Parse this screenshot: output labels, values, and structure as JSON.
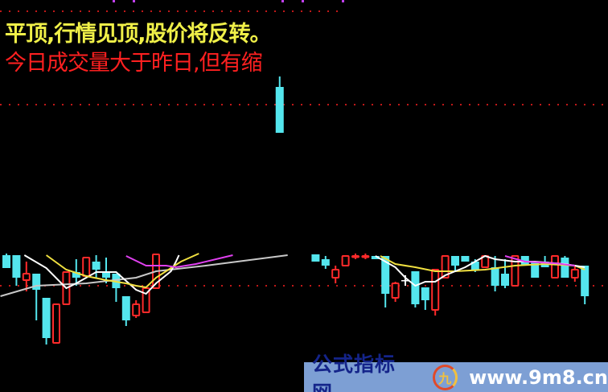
{
  "signals": {
    "line1": "平顶,行情见顶,股价将反转。",
    "line2": "今日成交量大于昨日,但有缩"
  },
  "watermark": {
    "brand": "公式指标网",
    "logo_text": "九",
    "url": "www.9m8.cn"
  },
  "colors": {
    "up": "#ff2a2a",
    "down": "#54e6ee",
    "neutral": "#ffffff",
    "ma_gray": "#c8c8c8",
    "ma_white": "#ffffff",
    "ma_yellow": "#f0e040",
    "ma_magenta": "#e040f0",
    "grid_dots": "#c01818",
    "banner": "#7d9fd4"
  },
  "chart_data": {
    "type": "candlestick",
    "title": "",
    "grid": "dotted horizontal",
    "reference_levels": [
      47.3,
      35.7,
      13.2
    ],
    "candles": [
      {
        "i": 0,
        "o": 17.0,
        "h": 17.2,
        "l": 15.4,
        "c": 15.4
      },
      {
        "i": 1,
        "o": 17.0,
        "h": 17.0,
        "l": 13.2,
        "c": 14.2
      },
      {
        "i": 2,
        "o": 13.9,
        "h": 16.2,
        "l": 12.5,
        "c": 14.7
      },
      {
        "i": 3,
        "o": 14.7,
        "h": 14.7,
        "l": 8.9,
        "c": 12.7
      },
      {
        "i": 4,
        "o": 11.7,
        "h": 11.7,
        "l": 5.9,
        "c": 6.7
      },
      {
        "i": 5,
        "o": 6.1,
        "h": 10.9,
        "l": 6.1,
        "c": 10.9
      },
      {
        "i": 6,
        "o": 10.9,
        "h": 14.9,
        "l": 10.9,
        "c": 14.9
      },
      {
        "i": 7,
        "o": 14.9,
        "h": 16.5,
        "l": 13.2,
        "c": 14.2
      },
      {
        "i": 8,
        "o": 14.4,
        "h": 16.7,
        "l": 14.4,
        "c": 16.7
      },
      {
        "i": 9,
        "o": 16.2,
        "h": 17.0,
        "l": 14.2,
        "c": 15.2
      },
      {
        "i": 10,
        "o": 15.0,
        "h": 16.7,
        "l": 13.5,
        "c": 14.2
      },
      {
        "i": 11,
        "o": 14.7,
        "h": 14.7,
        "l": 11.2,
        "c": 12.9
      },
      {
        "i": 12,
        "o": 11.9,
        "h": 11.9,
        "l": 8.2,
        "c": 8.9
      },
      {
        "i": 13,
        "o": 9.5,
        "h": 11.4,
        "l": 9.2,
        "c": 10.9
      },
      {
        "i": 14,
        "o": 9.9,
        "h": 12.9,
        "l": 9.9,
        "c": 12.9
      },
      {
        "i": 15,
        "o": 12.9,
        "h": 17.1,
        "l": 12.9,
        "c": 17.1
      },
      {
        "i": 27.4,
        "o": 37.9,
        "h": 39.2,
        "l": 32.2,
        "c": 32.2
      },
      {
        "i": 31,
        "o": 17.1,
        "h": 17.1,
        "l": 16.2,
        "c": 16.2
      },
      {
        "i": 32,
        "o": 16.5,
        "h": 16.9,
        "l": 15.3,
        "c": 15.7
      },
      {
        "i": 33,
        "o": 14.2,
        "h": 15.7,
        "l": 13.5,
        "c": 15.2
      },
      {
        "i": 34,
        "o": 15.7,
        "h": 16.9,
        "l": 15.7,
        "c": 16.9
      },
      {
        "i": 35,
        "o": 16.9,
        "h": 17.2,
        "l": 16.5,
        "c": 16.9
      },
      {
        "i": 36,
        "o": 16.9,
        "h": 17.2,
        "l": 16.5,
        "c": 16.9
      },
      {
        "i": 37,
        "o": 16.9,
        "h": 16.9,
        "l": 16.5,
        "c": 16.5
      },
      {
        "i": 38,
        "o": 16.9,
        "h": 16.9,
        "l": 10.5,
        "c": 12.2
      },
      {
        "i": 39,
        "o": 11.7,
        "h": 13.7,
        "l": 11.2,
        "c": 13.5
      },
      {
        "i": 40,
        "o": 13.9,
        "h": 14.5,
        "l": 13.2,
        "c": 13.9,
        "neutral": true
      },
      {
        "i": 41,
        "o": 15.0,
        "h": 15.0,
        "l": 10.5,
        "c": 10.9
      },
      {
        "i": 42,
        "o": 13.0,
        "h": 13.0,
        "l": 10.2,
        "c": 11.4
      },
      {
        "i": 43,
        "o": 10.2,
        "h": 15.2,
        "l": 9.5,
        "c": 15.2
      },
      {
        "i": 44,
        "o": 14.2,
        "h": 16.9,
        "l": 14.2,
        "c": 16.9
      },
      {
        "i": 45,
        "o": 16.9,
        "h": 16.9,
        "l": 14.9,
        "c": 15.7
      },
      {
        "i": 46,
        "o": 16.9,
        "h": 16.9,
        "l": 16.2,
        "c": 16.2
      },
      {
        "i": 47,
        "o": 16.2,
        "h": 16.5,
        "l": 14.9,
        "c": 15.2
      },
      {
        "i": 48,
        "o": 15.5,
        "h": 16.9,
        "l": 15.5,
        "c": 16.9
      },
      {
        "i": 49,
        "o": 15.5,
        "h": 16.9,
        "l": 12.5,
        "c": 13.2
      },
      {
        "i": 50,
        "o": 14.7,
        "h": 16.5,
        "l": 12.9,
        "c": 13.2
      },
      {
        "i": 51,
        "o": 13.2,
        "h": 16.9,
        "l": 13.2,
        "c": 16.9
      },
      {
        "i": 52,
        "o": 16.9,
        "h": 16.9,
        "l": 15.7,
        "c": 15.7
      },
      {
        "i": 53,
        "o": 16.2,
        "h": 16.2,
        "l": 14.2,
        "c": 14.2
      },
      {
        "i": 54,
        "o": 16.2,
        "h": 16.9,
        "l": 15.5,
        "c": 15.5
      },
      {
        "i": 55,
        "o": 14.2,
        "h": 16.9,
        "l": 14.2,
        "c": 16.9
      },
      {
        "i": 56,
        "o": 16.7,
        "h": 16.9,
        "l": 14.2,
        "c": 14.2
      },
      {
        "i": 57,
        "o": 14.2,
        "h": 15.7,
        "l": 13.7,
        "c": 15.2
      },
      {
        "i": 58,
        "o": 15.7,
        "h": 15.7,
        "l": 10.9,
        "c": 11.9
      }
    ],
    "lines": [
      {
        "color": "ma_gray",
        "points": [
          [
            -0.6,
            11.9
          ],
          [
            3,
            13.2
          ],
          [
            8,
            13.5
          ],
          [
            13,
            14.2
          ],
          [
            15,
            15.0
          ],
          [
            20,
            15.7
          ],
          [
            28.2,
            17.0
          ]
        ]
      },
      {
        "color": "ma_white",
        "points": [
          [
            1.8,
            17.0
          ],
          [
            4,
            15.4
          ],
          [
            6,
            12.9
          ],
          [
            7,
            13.5
          ],
          [
            9,
            14.9
          ],
          [
            11,
            14.9
          ],
          [
            13,
            12.7
          ],
          [
            14,
            12.2
          ],
          [
            15,
            13.5
          ],
          [
            16.5,
            15.0
          ],
          [
            17,
            16.2
          ],
          [
            17.3,
            17.0
          ]
        ]
      },
      {
        "color": "ma_yellow",
        "points": [
          [
            4,
            17.0
          ],
          [
            6,
            15.2
          ],
          [
            8,
            14.4
          ],
          [
            10,
            13.9
          ],
          [
            12,
            13.5
          ],
          [
            13,
            13.2
          ],
          [
            14,
            13.0
          ],
          [
            15,
            14.2
          ],
          [
            16,
            15.0
          ],
          [
            17.5,
            16.2
          ],
          [
            19.3,
            17.2
          ]
        ]
      },
      {
        "color": "ma_magenta",
        "points": [
          [
            12,
            16.9
          ],
          [
            14,
            15.7
          ],
          [
            16,
            15.7
          ],
          [
            17,
            15.5
          ],
          [
            19,
            15.9
          ],
          [
            22.7,
            17.0
          ]
        ]
      },
      {
        "color": "ma_yellow",
        "points": [
          [
            37.5,
            16.9
          ],
          [
            39,
            15.9
          ],
          [
            41,
            15.5
          ],
          [
            43,
            15.0
          ],
          [
            45,
            15.0
          ],
          [
            48,
            15.2
          ],
          [
            51,
            15.7
          ],
          [
            54,
            15.9
          ],
          [
            57,
            15.7
          ],
          [
            58,
            15.2
          ]
        ]
      },
      {
        "color": "ma_white",
        "points": [
          [
            37,
            16.9
          ],
          [
            39,
            15.5
          ],
          [
            40,
            14.2
          ],
          [
            41,
            13.2
          ],
          [
            42,
            13.7
          ],
          [
            43,
            13.7
          ],
          [
            44,
            14.5
          ],
          [
            46,
            15.5
          ],
          [
            47,
            16.2
          ],
          [
            48,
            16.9
          ],
          [
            49,
            16.5
          ],
          [
            51,
            16.2
          ],
          [
            53,
            16.2
          ],
          [
            56,
            15.9
          ],
          [
            58,
            15.5
          ]
        ]
      },
      {
        "color": "ma_magenta",
        "points": [
          [
            50,
            16.9
          ],
          [
            52,
            16.2
          ],
          [
            55,
            16.0
          ],
          [
            57,
            15.7
          ]
        ]
      }
    ]
  }
}
